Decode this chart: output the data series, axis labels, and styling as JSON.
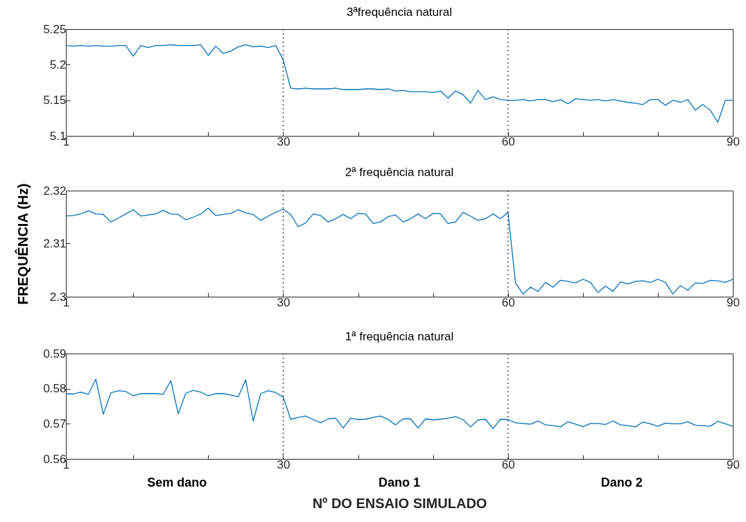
{
  "chart_data": [
    {
      "type": "line",
      "title": "3ªfrequência natural",
      "color": "#0072bd",
      "xlim": [
        1,
        90
      ],
      "xticks": [
        1,
        {
          "value": 10,
          "label": null
        },
        {
          "value": 20,
          "label": null
        },
        30,
        {
          "value": 40,
          "label": null
        },
        {
          "value": 50,
          "label": null
        },
        60,
        {
          "value": 70,
          "label": null
        },
        {
          "value": 80,
          "label": null
        },
        90
      ],
      "ylim": [
        5.1,
        5.25
      ],
      "yticks": [
        5.1,
        5.15,
        5.2,
        5.25
      ],
      "x": [
        1,
        2,
        3,
        4,
        5,
        6,
        7,
        8,
        9,
        10,
        11,
        12,
        13,
        14,
        15,
        16,
        17,
        18,
        19,
        20,
        21,
        22,
        23,
        24,
        25,
        26,
        27,
        28,
        29,
        30,
        31,
        32,
        33,
        34,
        35,
        36,
        37,
        38,
        39,
        40,
        41,
        42,
        43,
        44,
        45,
        46,
        47,
        48,
        49,
        50,
        51,
        52,
        53,
        54,
        55,
        56,
        57,
        58,
        59,
        60,
        61,
        62,
        63,
        64,
        65,
        66,
        67,
        68,
        69,
        70,
        71,
        72,
        73,
        74,
        75,
        76,
        77,
        78,
        79,
        80,
        81,
        82,
        83,
        84,
        85,
        86,
        87,
        88,
        89,
        90
      ],
      "values": [
        5.227,
        5.226,
        5.227,
        5.226,
        5.227,
        5.226,
        5.226,
        5.227,
        5.227,
        5.212,
        5.227,
        5.224,
        5.227,
        5.227,
        5.228,
        5.227,
        5.227,
        5.227,
        5.228,
        5.213,
        5.226,
        5.216,
        5.219,
        5.225,
        5.228,
        5.225,
        5.226,
        5.224,
        5.227,
        5.207,
        5.167,
        5.166,
        5.167,
        5.166,
        5.166,
        5.166,
        5.167,
        5.165,
        5.165,
        5.165,
        5.166,
        5.166,
        5.165,
        5.166,
        5.163,
        5.164,
        5.162,
        5.162,
        5.162,
        5.161,
        5.163,
        5.153,
        5.163,
        5.158,
        5.146,
        5.164,
        5.151,
        5.155,
        5.151,
        5.15,
        5.15,
        5.151,
        5.149,
        5.151,
        5.151,
        5.148,
        5.151,
        5.145,
        5.152,
        5.151,
        5.15,
        5.151,
        5.149,
        5.151,
        5.149,
        5.147,
        5.146,
        5.144,
        5.151,
        5.151,
        5.143,
        5.15,
        5.147,
        5.151,
        5.136,
        5.144,
        5.136,
        5.119,
        5.15,
        5.15
      ],
      "ref_lines": [
        {
          "axis": "x",
          "value": 30,
          "color": "#333333",
          "line_style": "dotted"
        },
        {
          "axis": "x",
          "value": 60,
          "color": "#333333",
          "line_style": "dotted"
        }
      ]
    },
    {
      "type": "line",
      "title": "2ª frequência natural",
      "ylabel": "FREQUÊNCIA (Hz)",
      "color": "#0072bd",
      "xlim": [
        1,
        90
      ],
      "xticks": [
        1,
        {
          "value": 10,
          "label": null
        },
        {
          "value": 20,
          "label": null
        },
        30,
        {
          "value": 40,
          "label": null
        },
        {
          "value": 50,
          "label": null
        },
        60,
        {
          "value": 70,
          "label": null
        },
        {
          "value": 80,
          "label": null
        },
        90
      ],
      "ylim": [
        2.3,
        2.32
      ],
      "yticks": [
        2.3,
        2.31,
        2.32
      ],
      "x": [
        1,
        2,
        3,
        4,
        5,
        6,
        7,
        8,
        9,
        10,
        11,
        12,
        13,
        14,
        15,
        16,
        17,
        18,
        19,
        20,
        21,
        22,
        23,
        24,
        25,
        26,
        27,
        28,
        29,
        30,
        31,
        32,
        33,
        34,
        35,
        36,
        37,
        38,
        39,
        40,
        41,
        42,
        43,
        44,
        45,
        46,
        47,
        48,
        49,
        50,
        51,
        52,
        53,
        54,
        55,
        56,
        57,
        58,
        59,
        60,
        61,
        62,
        63,
        64,
        65,
        66,
        67,
        68,
        69,
        70,
        71,
        72,
        73,
        74,
        75,
        76,
        77,
        78,
        79,
        80,
        81,
        82,
        83,
        84,
        85,
        86,
        87,
        88,
        89,
        90
      ],
      "values": [
        2.3152,
        2.3153,
        2.3156,
        2.3162,
        2.3156,
        2.3155,
        2.3141,
        2.3148,
        2.3156,
        2.3164,
        2.3152,
        2.3154,
        2.3156,
        2.3163,
        2.3156,
        2.3155,
        2.3145,
        2.315,
        2.3156,
        2.3167,
        2.3153,
        2.3155,
        2.3157,
        2.3164,
        2.3158,
        2.3155,
        2.3144,
        2.3152,
        2.3159,
        2.3165,
        2.3155,
        2.3132,
        2.3139,
        2.3156,
        2.3153,
        2.3141,
        2.3147,
        2.3155,
        2.3147,
        2.3157,
        2.3156,
        2.3138,
        2.3141,
        2.3151,
        2.3154,
        2.3141,
        2.3147,
        2.3156,
        2.3147,
        2.3157,
        2.3156,
        2.3138,
        2.3141,
        2.3159,
        2.3152,
        2.3144,
        2.3147,
        2.3156,
        2.3147,
        2.3159,
        2.3026,
        2.3005,
        2.3018,
        2.301,
        2.3027,
        2.3018,
        2.3031,
        2.3029,
        2.3026,
        2.3033,
        2.3027,
        2.3008,
        2.302,
        2.301,
        2.3028,
        2.3024,
        2.3029,
        2.303,
        2.3027,
        2.3033,
        2.3027,
        2.3005,
        2.3021,
        2.3012,
        2.3026,
        2.3025,
        2.3031,
        2.303,
        2.3027,
        2.3033
      ],
      "ref_lines": [
        {
          "axis": "x",
          "value": 30,
          "color": "#333333",
          "line_style": "dotted"
        },
        {
          "axis": "x",
          "value": 60,
          "color": "#333333",
          "line_style": "dotted"
        }
      ]
    },
    {
      "type": "line",
      "title": "1ª frequência natural",
      "xlabel": "Nº DO ENSAIO SIMULADO",
      "annotations": [
        "Sem dano",
        "Dano 1",
        "Dano 2"
      ],
      "color": "#0072bd",
      "xlim": [
        1,
        90
      ],
      "xticks": [
        1,
        {
          "value": 10,
          "label": null
        },
        {
          "value": 20,
          "label": null
        },
        30,
        {
          "value": 40,
          "label": null
        },
        {
          "value": 50,
          "label": null
        },
        60,
        {
          "value": 70,
          "label": null
        },
        {
          "value": 80,
          "label": null
        },
        90
      ],
      "ylim": [
        0.56,
        0.59
      ],
      "yticks": [
        0.56,
        0.57,
        0.58,
        0.59
      ],
      "x": [
        1,
        2,
        3,
        4,
        5,
        6,
        7,
        8,
        9,
        10,
        11,
        12,
        13,
        14,
        15,
        16,
        17,
        18,
        19,
        20,
        21,
        22,
        23,
        24,
        25,
        26,
        27,
        28,
        29,
        30,
        31,
        32,
        33,
        34,
        35,
        36,
        37,
        38,
        39,
        40,
        41,
        42,
        43,
        44,
        45,
        46,
        47,
        48,
        49,
        50,
        51,
        52,
        53,
        54,
        55,
        56,
        57,
        58,
        59,
        60,
        61,
        62,
        63,
        64,
        65,
        66,
        67,
        68,
        69,
        70,
        71,
        72,
        73,
        74,
        75,
        76,
        77,
        78,
        79,
        80,
        81,
        82,
        83,
        84,
        85,
        86,
        87,
        88,
        89,
        90
      ],
      "values": [
        0.5785,
        0.5785,
        0.579,
        0.5784,
        0.5827,
        0.5727,
        0.5788,
        0.5794,
        0.5792,
        0.578,
        0.5786,
        0.5786,
        0.5786,
        0.5784,
        0.5823,
        0.5728,
        0.5787,
        0.5795,
        0.579,
        0.578,
        0.5786,
        0.5786,
        0.5782,
        0.5777,
        0.5825,
        0.5708,
        0.5786,
        0.5794,
        0.5789,
        0.5776,
        0.5713,
        0.5718,
        0.5722,
        0.5712,
        0.5703,
        0.5714,
        0.5716,
        0.5688,
        0.5716,
        0.5712,
        0.5713,
        0.5718,
        0.5722,
        0.5712,
        0.5697,
        0.5714,
        0.5714,
        0.5688,
        0.5714,
        0.5711,
        0.5713,
        0.5716,
        0.572,
        0.5712,
        0.5691,
        0.5711,
        0.5713,
        0.5686,
        0.5713,
        0.5712,
        0.5703,
        0.5701,
        0.5699,
        0.5708,
        0.5697,
        0.5695,
        0.5691,
        0.5706,
        0.5699,
        0.5692,
        0.5701,
        0.5701,
        0.5698,
        0.5708,
        0.5697,
        0.5695,
        0.5691,
        0.5705,
        0.57,
        0.5693,
        0.5702,
        0.57,
        0.57,
        0.5706,
        0.5696,
        0.5695,
        0.5693,
        0.5707,
        0.57,
        0.5693
      ],
      "ref_lines": [
        {
          "axis": "x",
          "value": 30,
          "color": "#333333",
          "line_style": "dotted"
        },
        {
          "axis": "x",
          "value": 60,
          "color": "#333333",
          "line_style": "dotted"
        }
      ]
    }
  ]
}
